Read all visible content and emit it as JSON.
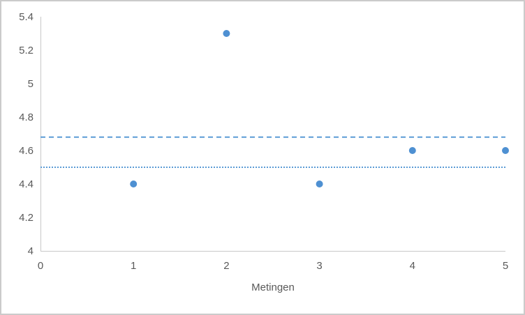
{
  "chart": {
    "background_color": "#FFFFFF",
    "frame_border_color": "#CBCBCB",
    "axis_line_color": "#C8C8C8",
    "tick_label_color": "#595959",
    "axis_title_color": "#595959",
    "point_color": "#4E90D2",
    "dashed_line_color": "#5B9BD5",
    "dotted_line_color": "#5B9BD5"
  },
  "chart_data": {
    "type": "scatter",
    "title": "",
    "xlabel": "Metingen",
    "ylabel": "",
    "xlim": [
      0,
      5
    ],
    "ylim": [
      4,
      5.4
    ],
    "x_ticks": [
      0,
      1,
      2,
      3,
      4,
      5
    ],
    "x_tick_labels": [
      "0",
      "1",
      "2",
      "3",
      "4",
      "5"
    ],
    "y_ticks": [
      4,
      4.2,
      4.4,
      4.6,
      4.8,
      5,
      5.2,
      5.4
    ],
    "y_tick_labels": [
      "4",
      "4.2",
      "4.4",
      "4.6",
      "4.8",
      "5",
      "5.2",
      "5.4"
    ],
    "grid": false,
    "legend": "none",
    "series": [
      {
        "name": "metingen-points",
        "kind": "scatter",
        "x": [
          1,
          2,
          3,
          4,
          5
        ],
        "y": [
          4.4,
          5.3,
          4.4,
          4.6,
          4.6
        ]
      },
      {
        "name": "dashed-reference-line",
        "kind": "hline",
        "style": "dashed",
        "y": 4.68
      },
      {
        "name": "dotted-reference-line",
        "kind": "hline",
        "style": "dotted",
        "y": 4.5
      }
    ]
  }
}
